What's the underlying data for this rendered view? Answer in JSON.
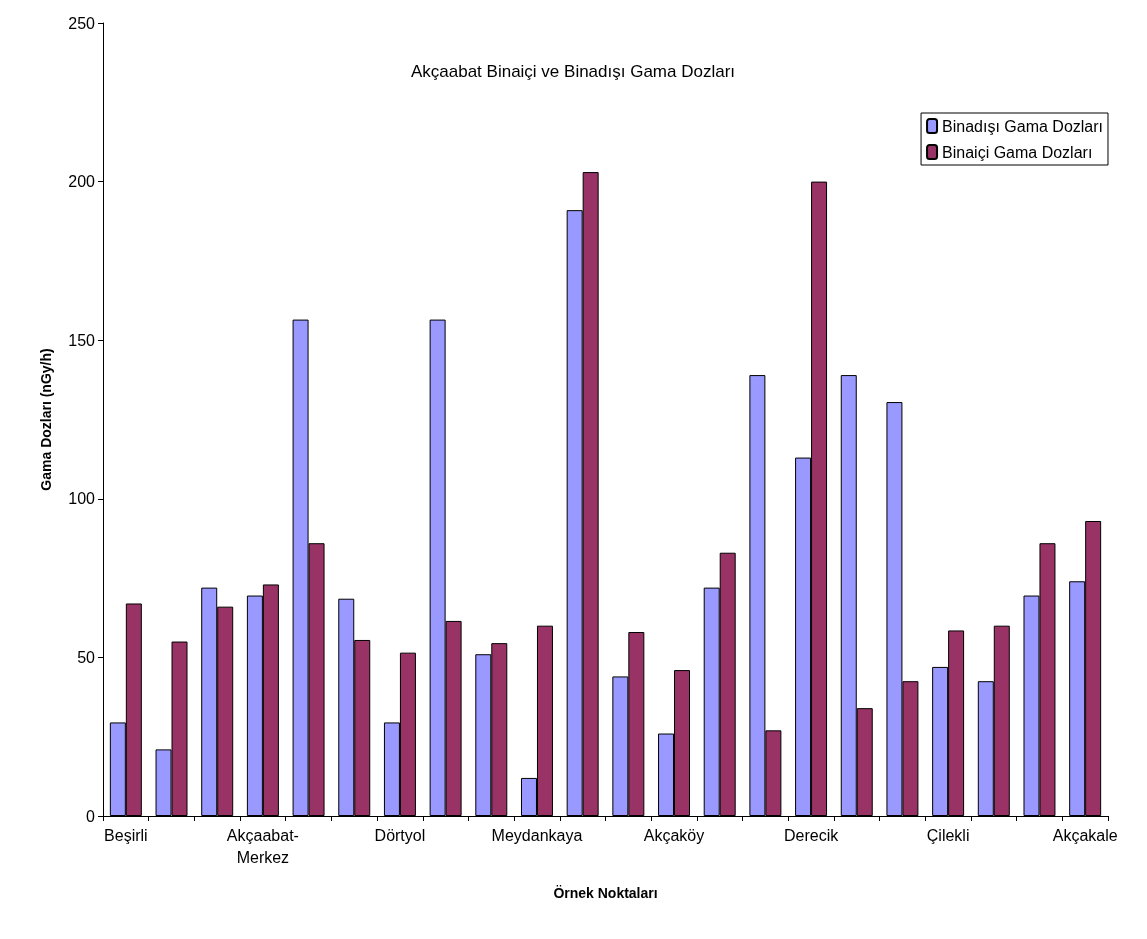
{
  "chart_data": {
    "type": "bar",
    "title": "Akçaabat Binaiçi ve Binadışı Gama Dozları",
    "xlabel": "Örnek Noktaları",
    "ylabel": "Gama Dozları (nGy/h)",
    "categories": [
      "Beşirli",
      null,
      null,
      "Akçaabat-\nMerkez",
      null,
      null,
      "Dörtyol",
      null,
      null,
      "Meydankaya",
      null,
      null,
      "Akçaköy",
      null,
      null,
      "Derecik",
      null,
      null,
      "Çilekli",
      null,
      null,
      "Akçakale"
    ],
    "series": [
      {
        "name": "Binadışı Gama Dozları",
        "color": "#9999ff",
        "values": [
          29.5,
          21,
          72,
          69.5,
          156.5,
          68.5,
          29.5,
          156.5,
          51,
          12,
          191,
          44,
          26,
          72,
          139,
          113,
          139,
          130.5,
          47,
          42.5,
          69.5,
          74
        ]
      },
      {
        "name": "Binaiçi Gama Dozları",
        "color": "#993366",
        "values": [
          67,
          55,
          66,
          73,
          86,
          55.5,
          51.5,
          61.5,
          54.5,
          60,
          203,
          58,
          46,
          83,
          27,
          200,
          34,
          42.5,
          58.5,
          60,
          86,
          93
        ]
      }
    ],
    "ylim": [
      0,
      250
    ],
    "yticks": [
      0,
      50,
      100,
      150,
      200,
      250
    ],
    "grid": false,
    "legend": "top right"
  }
}
